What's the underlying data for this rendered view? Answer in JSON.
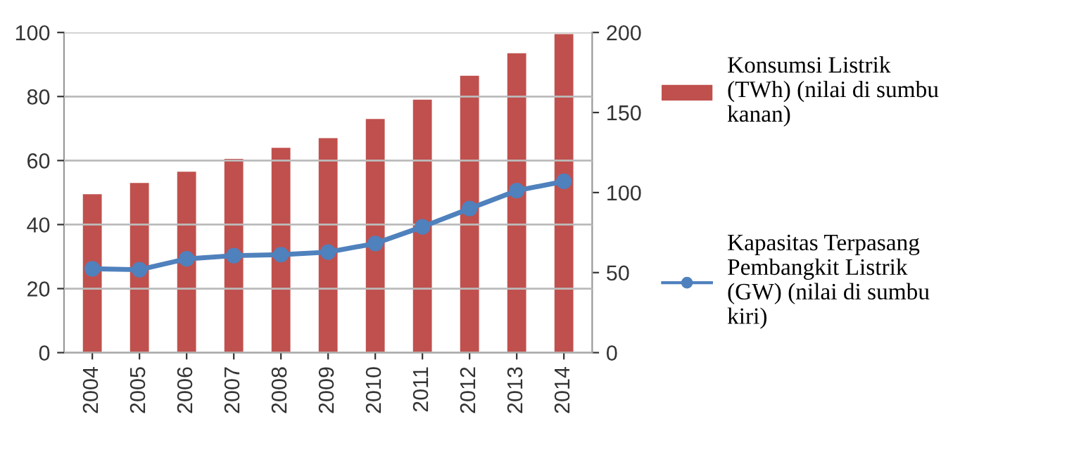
{
  "chart_data": {
    "type": "bar",
    "categories": [
      "2004",
      "2005",
      "2006",
      "2007",
      "2008",
      "2009",
      "2010",
      "2011",
      "2012",
      "2013",
      "2014"
    ],
    "series": [
      {
        "name": "Konsumsi Listrik (TWh) (nilai di sumbu kanan)",
        "axis": "y2",
        "color": "#c0504d",
        "values": [
          99,
          106,
          113,
          121,
          128,
          134,
          146,
          158,
          173,
          187,
          199
        ]
      },
      {
        "name": " Kapasitas Terpasang Pembangkit Listrik (GW) (nilai di sumbu kiri)",
        "type": "line",
        "axis": "y",
        "color": "#4f81bd",
        "values": [
          26.2,
          25.9,
          29.3,
          30.3,
          30.6,
          31.4,
          34.1,
          39.3,
          45.0,
          50.6,
          53.5
        ]
      }
    ],
    "ylim": [
      0,
      100
    ],
    "yticks": [
      0,
      20,
      40,
      60,
      80,
      100
    ],
    "y2lim": [
      0,
      200
    ],
    "y2ticks": [
      0,
      50,
      100,
      150,
      200
    ],
    "grid": "y",
    "legend": "right",
    "marker": "circle",
    "line_style": "solid"
  }
}
